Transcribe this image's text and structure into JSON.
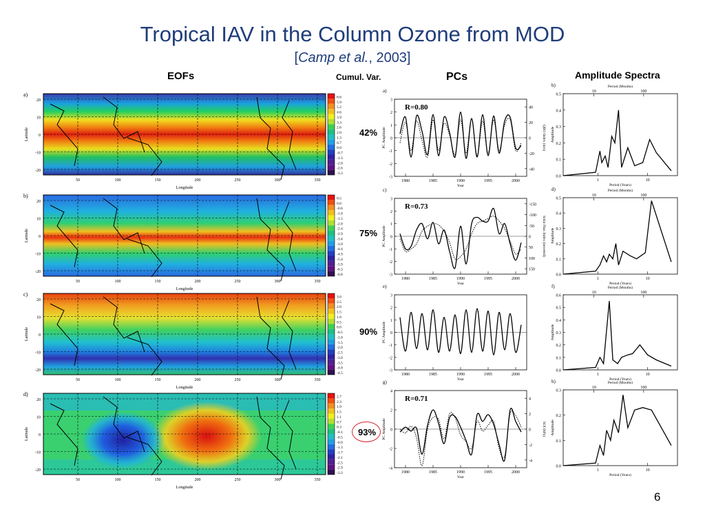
{
  "title": "Tropical IAV in the Column Ozone from MOD",
  "citation": {
    "open": "[",
    "authors": "Camp et al.",
    "rest": ", 2003]"
  },
  "headers": {
    "eofs": "EOFs",
    "cumvar": "Cumul. Var.",
    "pcs": "PCs",
    "spectra": "Amplitude Spectra"
  },
  "page_number": "6",
  "map_axis": {
    "xlabel": "Longitude",
    "ylabel": "Latitude",
    "xticks": [
      "50",
      "100",
      "150",
      "200",
      "250",
      "300",
      "350"
    ],
    "yticks": [
      "20",
      "10",
      "0",
      "-10",
      "-20"
    ]
  },
  "eof_maps": [
    {
      "panel": "a)",
      "cumulative_variance": "42%",
      "colorbar": [
        "6.6",
        "5.9",
        "5.2",
        "4.6",
        "3.9",
        "3.3",
        "2.6",
        "2.0",
        "1.3",
        "0.7",
        "0.0",
        "-0.7",
        "-1.3",
        "-2.0",
        "-2.6",
        "-3.3"
      ],
      "pattern": "zonal-bands"
    },
    {
      "panel": "b)",
      "cumulative_variance": "75%",
      "colorbar": [
        "0.5",
        "0.0",
        "-0.6",
        "-1.0",
        "-1.5",
        "-2.0",
        "-2.4",
        "-2.9",
        "-3.4",
        "-3.9",
        "-4.4",
        "-4.9",
        "-5.4",
        "-5.9",
        "-6.3",
        "-6.8"
      ],
      "pattern": "equatorial-band"
    },
    {
      "panel": "c)",
      "cumulative_variance": "90%",
      "colorbar": [
        "3.0",
        "2.5",
        "2.0",
        "1.5",
        "1.0",
        "0.5",
        "0.0",
        "-0.5",
        "-1.0",
        "-1.5",
        "-2.0",
        "-2.5",
        "-3.0",
        "-3.5",
        "-4.0",
        "-4.5"
      ],
      "pattern": "dipole"
    },
    {
      "panel": "d)",
      "cumulative_variance": "93%",
      "colorbar": [
        "2.7",
        "2.3",
        "1.9",
        "1.5",
        "1.1",
        "0.7",
        "0.3",
        "-0.1",
        "-0.5",
        "-0.9",
        "-1.3",
        "-1.7",
        "-2.1",
        "-2.5",
        "-2.9",
        "-3.3"
      ],
      "pattern": "enso"
    }
  ],
  "chart_data": [
    {
      "type": "line",
      "panel": "a)",
      "xlabel": "Year",
      "ylabel": "PC Amplitude",
      "y2label": "QBO Index (m/s)",
      "annotation": "R=0.80",
      "xlim": [
        1978,
        2002
      ],
      "ylim": [
        -3,
        3
      ],
      "xticks": [
        "1980",
        "1985",
        "1990",
        "1995",
        "2000"
      ],
      "yticks": [
        "3",
        "2",
        "1",
        "0",
        "-1",
        "-2",
        "-3"
      ],
      "y2ticks": [
        "40",
        "20",
        "0",
        "-20",
        "-40"
      ],
      "series": [
        {
          "style": "solid",
          "x": [
            1979,
            1980,
            1981,
            1982,
            1983,
            1984,
            1985,
            1986,
            1987,
            1988,
            1989,
            1990,
            1991,
            1992,
            1993,
            1994,
            1995,
            1996,
            1997,
            1998,
            1999,
            2000,
            2001
          ],
          "values": [
            0.3,
            1.6,
            -1.5,
            1.7,
            0.5,
            -1.3,
            1.8,
            -1.4,
            1.6,
            0.4,
            -1.5,
            2.0,
            -1.6,
            1.5,
            -1.5,
            1.8,
            -1.4,
            1.7,
            -1.2,
            1.3,
            1.6,
            -0.8,
            -0.6
          ]
        },
        {
          "style": "dotted",
          "x": [
            1979,
            1980,
            1981,
            1982,
            1983,
            1984,
            1985,
            1986,
            1987,
            1988,
            1989,
            1990,
            1991,
            1992,
            1993,
            1994,
            1995,
            1996,
            1997,
            1998,
            1999,
            2000,
            2001
          ],
          "values": [
            -0.4,
            1.2,
            -1.0,
            1.3,
            -0.2,
            -1.5,
            1.4,
            -1.0,
            1.1,
            0.2,
            -1.3,
            1.4,
            -1.2,
            1.5,
            -1.4,
            1.3,
            -1.2,
            1.4,
            -1.0,
            1.0,
            1.4,
            -1.0,
            -0.4
          ]
        }
      ]
    },
    {
      "type": "line",
      "panel": "b)",
      "xlabel": "Period (Years)",
      "ylabel": "Amplitude",
      "toplabel": "Period (Months)",
      "xscale": "log",
      "xlim": [
        0.2,
        40
      ],
      "ylim": [
        0,
        0.5
      ],
      "xticks": [
        "1",
        "10"
      ],
      "topticks": [
        "10",
        "100"
      ],
      "yticks": [
        "0.5",
        "0.4",
        "0.3",
        "0.2",
        "0.1",
        "0.0"
      ],
      "series": [
        {
          "style": "solid",
          "x": [
            0.2,
            0.9,
            1.1,
            1.2,
            1.4,
            1.6,
            1.9,
            2.2,
            2.6,
            3,
            4,
            5.5,
            8,
            11,
            15,
            30
          ],
          "values": [
            0.0,
            0.02,
            0.15,
            0.08,
            0.12,
            0.05,
            0.24,
            0.2,
            0.4,
            0.05,
            0.17,
            0.06,
            0.08,
            0.22,
            0.14,
            0.03
          ]
        }
      ]
    },
    {
      "type": "line",
      "panel": "c)",
      "xlabel": "Year",
      "ylabel": "PC Amplitude",
      "y2label": "Solar Flux Index (inverted)",
      "annotation": "R=0.73",
      "xlim": [
        1978,
        2002
      ],
      "ylim": [
        -3,
        3
      ],
      "xticks": [
        "1980",
        "1985",
        "1990",
        "1995",
        "2000"
      ],
      "yticks": [
        "3",
        "2",
        "1",
        "0",
        "-1",
        "-2",
        "-3"
      ],
      "y2ticks": [
        "-150",
        "-100",
        "-50",
        "0",
        "50",
        "100",
        "150"
      ],
      "series": [
        {
          "style": "solid",
          "x": [
            1979,
            1980,
            1981,
            1982,
            1983,
            1984,
            1985,
            1986,
            1987,
            1988,
            1989,
            1990,
            1991,
            1992,
            1993,
            1994,
            1995,
            1996,
            1997,
            1998,
            1999,
            2000,
            2001
          ],
          "values": [
            0.2,
            -1.0,
            -0.8,
            0.5,
            1.0,
            -0.2,
            1.1,
            -0.6,
            0.5,
            -1.2,
            -2.5,
            0.8,
            -2.2,
            1.0,
            1.5,
            1.2,
            1.2,
            2.2,
            0.2,
            1.0,
            -0.6,
            -1.9,
            -0.5
          ]
        },
        {
          "style": "dotted",
          "x": [
            1979,
            1980,
            1981,
            1982,
            1983,
            1984,
            1985,
            1986,
            1987,
            1988,
            1989,
            1990,
            1991,
            1992,
            1993,
            1994,
            1995,
            1996,
            1997,
            1998,
            1999,
            2000,
            2001
          ],
          "values": [
            -0.2,
            -1.2,
            -1.0,
            -0.6,
            0.4,
            0.8,
            1.0,
            0.9,
            0.4,
            -0.5,
            -1.8,
            -1.6,
            -1.0,
            0.2,
            1.0,
            1.2,
            1.4,
            1.6,
            1.2,
            0.6,
            -0.4,
            -1.4,
            -1.0
          ]
        }
      ]
    },
    {
      "type": "line",
      "panel": "d)",
      "xlabel": "Period (Years)",
      "ylabel": "Amplitude",
      "toplabel": "Period (Months)",
      "xscale": "log",
      "xlim": [
        0.2,
        40
      ],
      "ylim": [
        0,
        0.5
      ],
      "xticks": [
        "1",
        "10"
      ],
      "topticks": [
        "10",
        "100"
      ],
      "yticks": [
        "0.5",
        "0.4",
        "0.3",
        "0.2",
        "0.1",
        "0.0"
      ],
      "series": [
        {
          "style": "solid",
          "x": [
            0.2,
            0.9,
            1.1,
            1.3,
            1.5,
            1.7,
            2.0,
            2.3,
            2.6,
            3.2,
            4.5,
            6,
            9,
            12,
            30
          ],
          "values": [
            0.0,
            0.02,
            0.06,
            0.12,
            0.08,
            0.13,
            0.1,
            0.2,
            0.06,
            0.15,
            0.12,
            0.1,
            0.14,
            0.48,
            0.08
          ]
        }
      ]
    },
    {
      "type": "line",
      "panel": "e)",
      "xlabel": "Year",
      "ylabel": "PC Amplitude",
      "xlim": [
        1978,
        2002
      ],
      "ylim": [
        -3,
        3
      ],
      "xticks": [
        "1980",
        "1985",
        "1990",
        "1995",
        "2000"
      ],
      "yticks": [
        "3",
        "2",
        "1",
        "0",
        "-1",
        "-2",
        "-3"
      ],
      "series": [
        {
          "style": "solid",
          "x": [
            1979,
            1980,
            1981,
            1982,
            1983,
            1984,
            1985,
            1986,
            1987,
            1988,
            1989,
            1990,
            1991,
            1992,
            1993,
            1994,
            1995,
            1996,
            1997,
            1998,
            1999,
            2000,
            2001
          ],
          "values": [
            1.2,
            -1.5,
            1.6,
            -1.3,
            1.5,
            -1.4,
            1.8,
            -1.6,
            1.2,
            -1.5,
            1.4,
            -1.7,
            1.8,
            -1.6,
            1.9,
            -1.5,
            1.7,
            -1.8,
            1.6,
            -1.4,
            1.5,
            -1.6,
            0.6
          ]
        }
      ]
    },
    {
      "type": "line",
      "panel": "f)",
      "xlabel": "Period (Years)",
      "ylabel": "Amplitude",
      "toplabel": "Period (Months)",
      "xscale": "log",
      "xlim": [
        0.2,
        40
      ],
      "ylim": [
        0,
        0.6
      ],
      "xticks": [
        "1",
        "10"
      ],
      "topticks": [
        "10",
        "100"
      ],
      "yticks": [
        "0.6",
        "0.5",
        "0.4",
        "0.3",
        "0.2",
        "0.1",
        "0.0"
      ],
      "series": [
        {
          "style": "solid",
          "x": [
            0.2,
            0.9,
            1.1,
            1.3,
            1.5,
            1.7,
            2.0,
            2.5,
            3,
            4,
            5,
            7,
            10,
            15,
            30
          ],
          "values": [
            0.0,
            0.02,
            0.1,
            0.05,
            0.32,
            0.55,
            0.08,
            0.05,
            0.1,
            0.12,
            0.13,
            0.2,
            0.12,
            0.08,
            0.03
          ]
        }
      ]
    },
    {
      "type": "line",
      "panel": "g)",
      "xlabel": "Year",
      "ylabel": "PC Amplitude",
      "y2label": "SOI (hPa)",
      "annotation": "R=0.71",
      "xlim": [
        1978,
        2002
      ],
      "ylim": [
        -4,
        4
      ],
      "xticks": [
        "1980",
        "1985",
        "1990",
        "1995",
        "2000"
      ],
      "yticks": [
        "4",
        "2",
        "0",
        "-2",
        "-4"
      ],
      "y2ticks": [
        "4",
        "2",
        "0",
        "-2",
        "-4"
      ],
      "series": [
        {
          "style": "solid",
          "x": [
            1979,
            1980,
            1981,
            1982,
            1983,
            1984,
            1985,
            1986,
            1987,
            1988,
            1989,
            1990,
            1991,
            1992,
            1993,
            1994,
            1995,
            1996,
            1997,
            1998,
            1999,
            2000,
            2001
          ],
          "values": [
            -0.3,
            0.2,
            -0.2,
            0.1,
            -2.6,
            0.4,
            2.0,
            0.6,
            -1.5,
            1.2,
            1.3,
            0.2,
            -1.2,
            -2.6,
            1.5,
            0.8,
            1.5,
            0.5,
            -1.6,
            -3.2,
            2.0,
            0.8,
            -0.3
          ]
        },
        {
          "style": "dotted",
          "x": [
            1979,
            1980,
            1981,
            1982,
            1983,
            1984,
            1985,
            1986,
            1987,
            1988,
            1989,
            1990,
            1991,
            1992,
            1993,
            1994,
            1995,
            1996,
            1997,
            1998,
            1999,
            2000,
            2001
          ],
          "values": [
            0.0,
            -0.4,
            0.3,
            -0.9,
            -3.8,
            0.0,
            1.2,
            1.0,
            -1.0,
            1.6,
            1.2,
            -0.6,
            -1.3,
            -2.0,
            0.8,
            -0.2,
            0.4,
            0.8,
            -2.0,
            -2.8,
            1.6,
            1.4,
            0.2
          ]
        }
      ]
    },
    {
      "type": "line",
      "panel": "h)",
      "xlabel": "Period (Years)",
      "ylabel": "Amplitude",
      "toplabel": "Period (Months)",
      "xscale": "log",
      "xlim": [
        0.2,
        40
      ],
      "ylim": [
        0,
        0.3
      ],
      "xticks": [
        "1",
        "10"
      ],
      "topticks": [
        "10",
        "100"
      ],
      "yticks": [
        "0.3",
        "0.2",
        "0.1",
        "0.0"
      ],
      "series": [
        {
          "style": "solid",
          "x": [
            0.2,
            0.9,
            1.1,
            1.3,
            1.5,
            1.8,
            2.1,
            2.6,
            3.2,
            4.0,
            5.5,
            8,
            12,
            30
          ],
          "values": [
            0.0,
            0.01,
            0.08,
            0.04,
            0.14,
            0.1,
            0.18,
            0.13,
            0.28,
            0.15,
            0.22,
            0.23,
            0.22,
            0.08
          ]
        }
      ]
    }
  ]
}
